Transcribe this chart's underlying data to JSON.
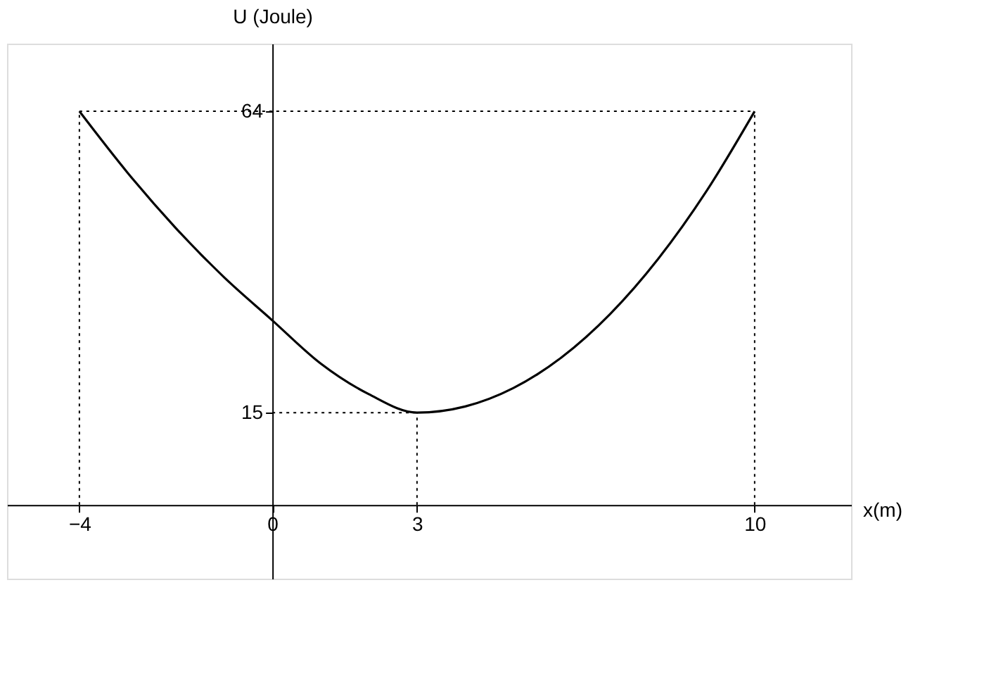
{
  "chart_data": {
    "type": "line",
    "xlabel": "x(m)",
    "ylabel": "U (Joule)",
    "x": [
      -4,
      -3,
      -2,
      -1,
      0,
      1,
      2,
      3,
      4,
      5,
      6,
      7,
      8,
      9,
      10
    ],
    "series": [
      {
        "color": "#000000",
        "values": [
          64,
          54,
          45,
          37,
          30,
          23,
          18,
          15,
          16,
          19,
          24,
          31,
          40,
          51,
          64
        ]
      }
    ],
    "xlim": [
      -5.5,
      12
    ],
    "ylim": [
      -12,
      75
    ],
    "xticks": [
      -4,
      0,
      3,
      10
    ],
    "yticks": [
      15,
      64
    ],
    "ref_lines": [
      {
        "axis": "y",
        "value": 64,
        "line_style": "dotted"
      },
      {
        "axis": "y",
        "value": 15,
        "line_style": "dotted"
      },
      {
        "axis": "x",
        "value": -4,
        "line_style": "dotted"
      },
      {
        "axis": "x",
        "value": 3,
        "line_style": "dotted"
      },
      {
        "axis": "x",
        "value": 10,
        "line_style": "dotted"
      }
    ],
    "grid": false,
    "marker": "none",
    "line_style": "solid"
  }
}
